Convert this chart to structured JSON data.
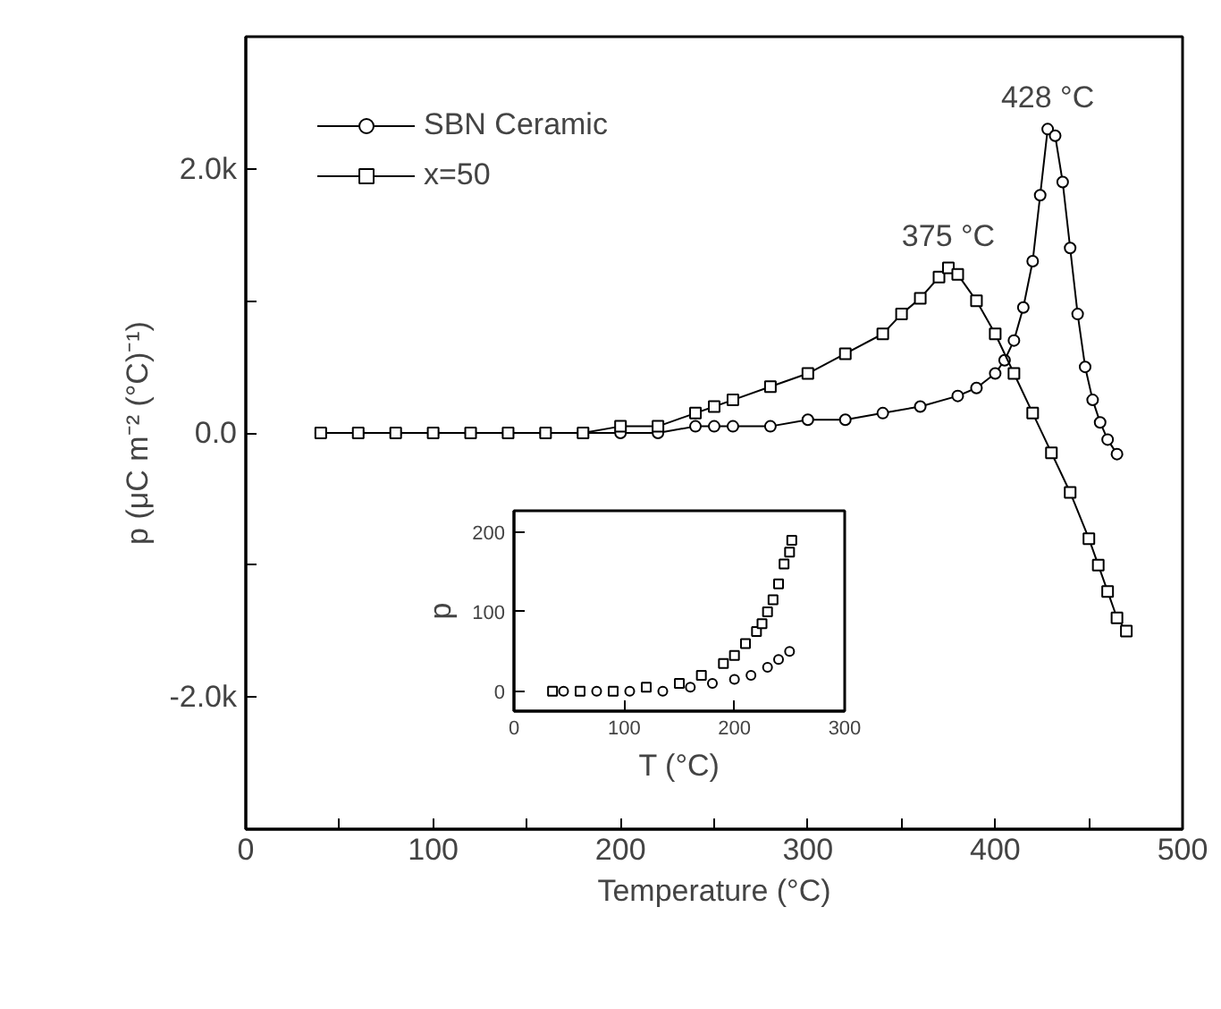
{
  "chart_data": [
    {
      "type": "line",
      "xlabel": "Temperature (°C)",
      "ylabel": "p (μC m⁻² (°C)⁻¹)",
      "xlim": [
        0,
        500
      ],
      "xticks": [
        0,
        {
          "value": 50,
          "label": null
        },
        100,
        {
          "value": 150,
          "label": null
        },
        200,
        {
          "value": 250,
          "label": null
        },
        300,
        {
          "value": 350,
          "label": null
        },
        400,
        {
          "value": 450,
          "label": null
        },
        500
      ],
      "ylim": [
        -3000,
        3000
      ],
      "yticks": [
        {
          "value": -3000,
          "label": null
        },
        {
          "value": -2000,
          "label": "-2.0k"
        },
        {
          "value": -1000,
          "label": null
        },
        {
          "value": 0,
          "label": "0.0"
        },
        {
          "value": 1000,
          "label": null
        },
        {
          "value": 2000,
          "label": "2.0k"
        },
        {
          "value": 3000,
          "label": null
        }
      ],
      "grid": false,
      "legend": "top left",
      "line_style": "solid",
      "annotations": [
        {
          "text": "428 °C",
          "x": 428,
          "y": 2300
        },
        {
          "text": "375 °C",
          "x": 375,
          "y": 1250
        }
      ],
      "series": [
        {
          "name": "SBN Ceramic",
          "color": "#000000",
          "marker": "circle",
          "x": [
            40,
            60,
            80,
            100,
            120,
            140,
            160,
            180,
            200,
            220,
            240,
            250,
            260,
            280,
            300,
            320,
            340,
            360,
            380,
            390,
            400,
            405,
            410,
            415,
            420,
            424,
            428,
            432,
            436,
            440,
            444,
            448,
            452,
            456,
            460,
            465
          ],
          "values": [
            0,
            0,
            0,
            0,
            0,
            0,
            0,
            0,
            0,
            0,
            50,
            50,
            50,
            50,
            100,
            100,
            150,
            200,
            280,
            340,
            450,
            550,
            700,
            950,
            1300,
            1800,
            2300,
            2250,
            1900,
            1400,
            900,
            500,
            250,
            80,
            -50,
            -160
          ]
        },
        {
          "name": "x=50",
          "color": "#000000",
          "marker": "square",
          "x": [
            40,
            60,
            80,
            100,
            120,
            140,
            160,
            180,
            200,
            220,
            240,
            250,
            260,
            280,
            300,
            320,
            340,
            350,
            360,
            370,
            375,
            380,
            390,
            400,
            410,
            420,
            430,
            440,
            450,
            455,
            460,
            465,
            470
          ],
          "values": [
            0,
            0,
            0,
            0,
            0,
            0,
            0,
            0,
            50,
            50,
            150,
            200,
            250,
            350,
            450,
            600,
            750,
            900,
            1020,
            1180,
            1250,
            1200,
            1000,
            750,
            450,
            150,
            -150,
            -450,
            -800,
            -1000,
            -1200,
            -1400,
            -1500
          ]
        }
      ]
    },
    {
      "type": "scatter",
      "xlabel": "T (°C)",
      "ylabel": "p",
      "xlim": [
        0,
        300
      ],
      "xticks": [
        0,
        100,
        200,
        300
      ],
      "ylim": [
        -25,
        227
      ],
      "yticks": [
        0,
        100,
        200
      ],
      "grid": false,
      "series": [
        {
          "color": "#000000",
          "marker": "square",
          "x": [
            35,
            60,
            90,
            120,
            150,
            170,
            190,
            200,
            210,
            220,
            225,
            230,
            235,
            240,
            245,
            250,
            252
          ],
          "values": [
            0,
            0,
            0,
            5,
            10,
            20,
            35,
            45,
            60,
            75,
            85,
            100,
            115,
            135,
            160,
            175,
            190
          ]
        },
        {
          "color": "#000000",
          "marker": "circle",
          "x": [
            45,
            75,
            105,
            135,
            160,
            180,
            200,
            215,
            230,
            240,
            250
          ],
          "values": [
            0,
            0,
            0,
            0,
            5,
            10,
            15,
            20,
            30,
            40,
            50
          ]
        }
      ]
    }
  ]
}
